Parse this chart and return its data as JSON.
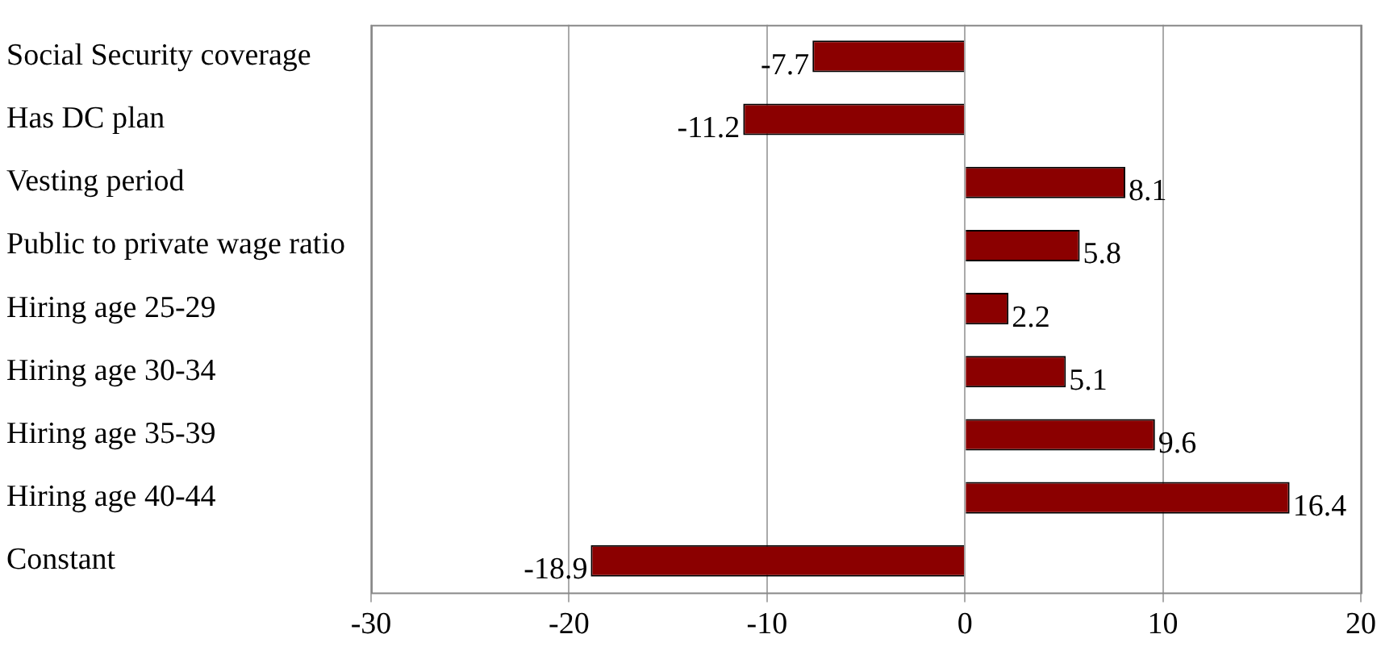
{
  "chart_data": {
    "type": "bar",
    "orientation": "horizontal",
    "categories": [
      "Social Security coverage",
      "Has DC plan",
      "Vesting period",
      "Public to private wage ratio",
      "Hiring age 25-29",
      "Hiring age 30-34",
      "Hiring age 35-39",
      "Hiring age 40-44",
      "Constant"
    ],
    "values": [
      -7.7,
      -11.2,
      8.1,
      5.8,
      2.2,
      5.1,
      9.6,
      16.4,
      -18.9
    ],
    "color": "#8b0000",
    "xlim": [
      -30,
      20
    ],
    "xticks": [
      -30,
      -20,
      -10,
      0,
      10,
      20
    ],
    "grid": "x",
    "data_labels": true,
    "legend": false
  }
}
